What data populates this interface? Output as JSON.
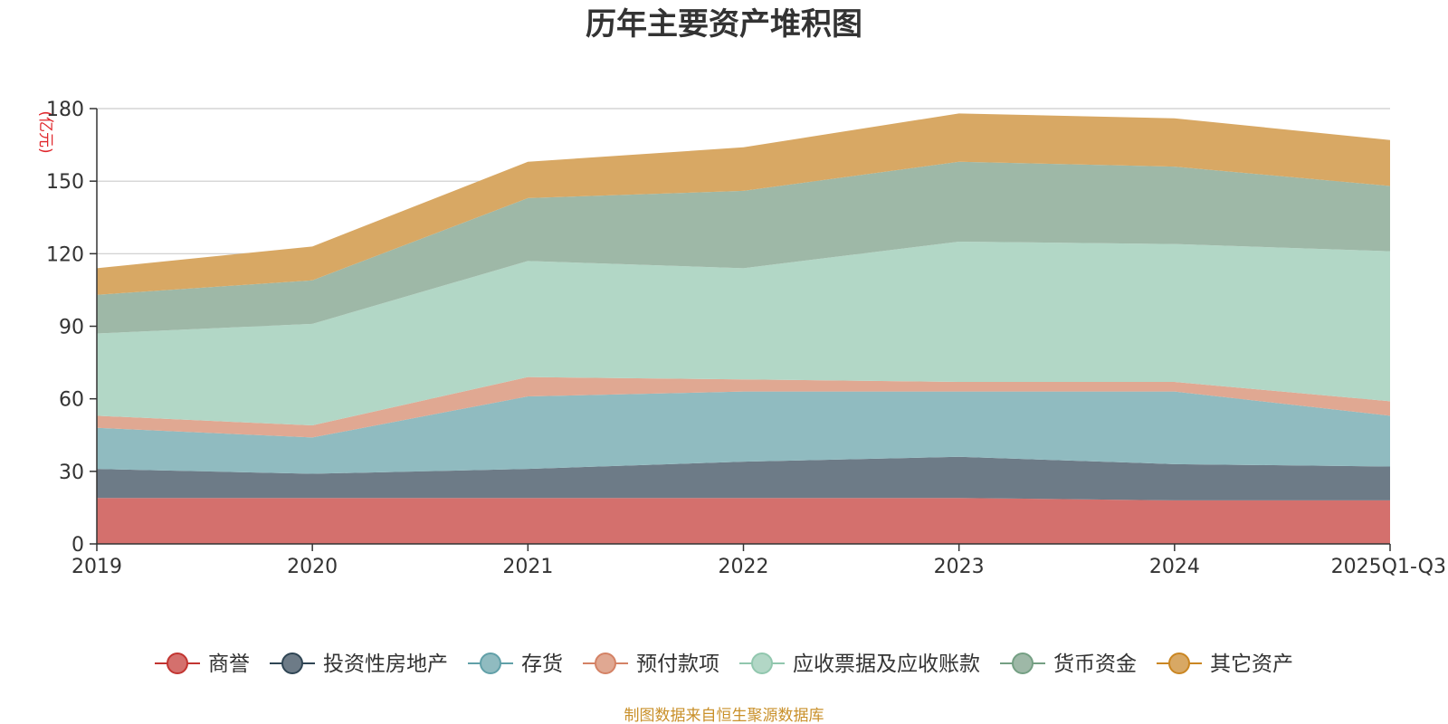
{
  "chart_data": {
    "type": "area",
    "stacked": true,
    "title": "历年主要资产堆积图",
    "unit_label": "(亿元)",
    "categories": [
      "2019",
      "2020",
      "2021",
      "2022",
      "2023",
      "2024",
      "2025Q1-Q3"
    ],
    "ylim": [
      0,
      180
    ],
    "yticks": [
      0,
      30,
      60,
      90,
      120,
      150,
      180
    ],
    "grid": true,
    "legend_position": "bottom",
    "series": [
      {
        "name": "商誉",
        "color": "#c23531",
        "fill": "#d4706d",
        "values": [
          19,
          19,
          19,
          19,
          19,
          18,
          18
        ]
      },
      {
        "name": "投资性房地产",
        "color": "#2f4554",
        "fill": "#6d7b87",
        "values": [
          12,
          10,
          12,
          15,
          17,
          15,
          14
        ]
      },
      {
        "name": "存货",
        "color": "#61a0a8",
        "fill": "#90bbc0",
        "values": [
          17,
          15,
          30,
          29,
          27,
          30,
          21
        ]
      },
      {
        "name": "预付款项",
        "color": "#d48265",
        "fill": "#e0a892",
        "values": [
          5,
          5,
          8,
          5,
          4,
          4,
          6
        ]
      },
      {
        "name": "应收票据及应收账款",
        "color": "#91c7ae",
        "fill": "#b2d7c6",
        "values": [
          34,
          42,
          48,
          46,
          58,
          57,
          62
        ]
      },
      {
        "name": "货币资金",
        "color": "#749f83",
        "fill": "#9eb8a7",
        "values": [
          16,
          18,
          26,
          32,
          33,
          32,
          27
        ]
      },
      {
        "name": "其它资产",
        "color": "#ca8622",
        "fill": "#d8a864",
        "values": [
          11,
          14,
          15,
          18,
          20,
          20,
          19
        ]
      }
    ],
    "source_note": "制图数据来自恒生聚源数据库"
  }
}
